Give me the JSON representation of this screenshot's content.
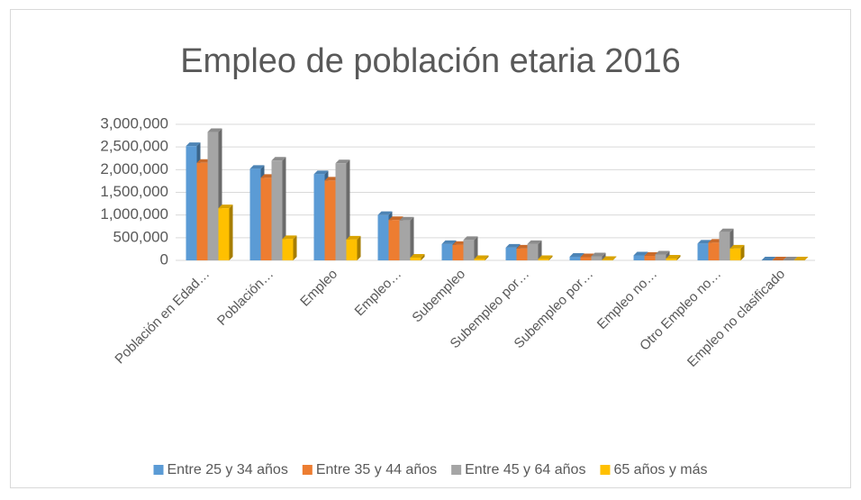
{
  "chart_data": {
    "type": "bar3d",
    "title": "Empleo de población etaria 2016",
    "categories": [
      "Población en Edad…",
      "Población…",
      "Empleo",
      "Empleo…",
      "Subempleo",
      "Subempleo por…",
      "Subempleo por…",
      "Empleo no…",
      "Otro Empleo no…",
      "Empleo no clasificado"
    ],
    "series": [
      {
        "name": "Entre 25 y 34 años",
        "color": "#5b9bd5",
        "values": [
          2520000,
          2020000,
          1900000,
          1000000,
          360000,
          280000,
          80000,
          110000,
          370000,
          0
        ]
      },
      {
        "name": "Entre 35 y 44 años",
        "color": "#ed7d31",
        "values": [
          2150000,
          1820000,
          1760000,
          890000,
          340000,
          260000,
          70000,
          100000,
          390000,
          0
        ]
      },
      {
        "name": "Entre 45 y 64 años",
        "color": "#a5a5a5",
        "values": [
          2830000,
          2200000,
          2140000,
          880000,
          450000,
          360000,
          90000,
          130000,
          620000,
          0
        ]
      },
      {
        "name": "65 años y más",
        "color": "#ffc000",
        "values": [
          1150000,
          470000,
          460000,
          60000,
          30000,
          30000,
          10000,
          40000,
          260000,
          0
        ]
      }
    ],
    "ylim": [
      0,
      3000000
    ],
    "yticks": [
      0,
      {
        "value": 500000,
        "label": "500,000"
      },
      {
        "value": 1000000,
        "label": "1,000,000"
      },
      {
        "value": 1500000,
        "label": "1,500,000"
      },
      {
        "value": 2000000,
        "label": "2,000,000"
      },
      {
        "value": 2500000,
        "label": "2,500,000"
      },
      {
        "value": 3000000,
        "label": "3,000,000"
      }
    ],
    "grid": true,
    "legend": "bottom"
  }
}
